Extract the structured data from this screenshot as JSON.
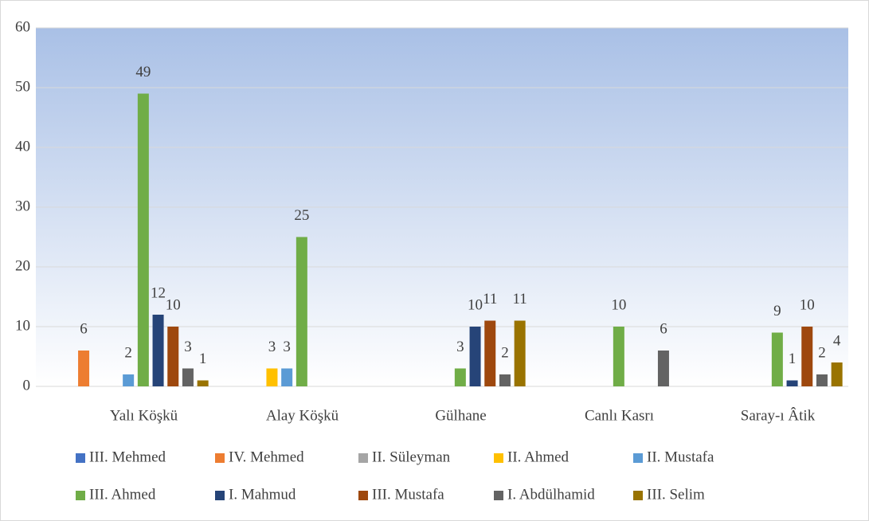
{
  "chart_data": {
    "type": "bar",
    "categories": [
      "Yalı Köşkü",
      "Alay Köşkü",
      "Gülhane",
      "Canlı Kasrı",
      "Saray-ı Âtik"
    ],
    "series": [
      {
        "name": "III. Mehmed",
        "color": "#4472c4",
        "values": [
          null,
          null,
          null,
          null,
          null
        ]
      },
      {
        "name": "IV. Mehmed",
        "color": "#ed7d31",
        "values": [
          6,
          null,
          null,
          null,
          null
        ]
      },
      {
        "name": "II. Süleyman",
        "color": "#a5a5a5",
        "values": [
          null,
          null,
          null,
          null,
          null
        ]
      },
      {
        "name": "II. Ahmed",
        "color": "#ffc000",
        "values": [
          null,
          3,
          null,
          null,
          null
        ]
      },
      {
        "name": "II. Mustafa",
        "color": "#5b9bd5",
        "values": [
          2,
          3,
          null,
          null,
          null
        ]
      },
      {
        "name": "III. Ahmed",
        "color": "#70ad47",
        "values": [
          49,
          25,
          3,
          10,
          9
        ]
      },
      {
        "name": "I. Mahmud",
        "color": "#264478",
        "values": [
          12,
          null,
          10,
          null,
          1
        ]
      },
      {
        "name": "III. Mustafa",
        "color": "#9e480e",
        "values": [
          10,
          null,
          11,
          null,
          10
        ]
      },
      {
        "name": "I. Abdülhamid",
        "color": "#636363",
        "values": [
          3,
          null,
          2,
          6,
          2
        ]
      },
      {
        "name": "III. Selim",
        "color": "#997300",
        "values": [
          1,
          null,
          11,
          null,
          4
        ]
      }
    ],
    "ylim": [
      0,
      60
    ],
    "yticks": [
      0,
      10,
      20,
      30,
      40,
      50,
      60
    ],
    "grid": true,
    "legend": "bottom"
  }
}
